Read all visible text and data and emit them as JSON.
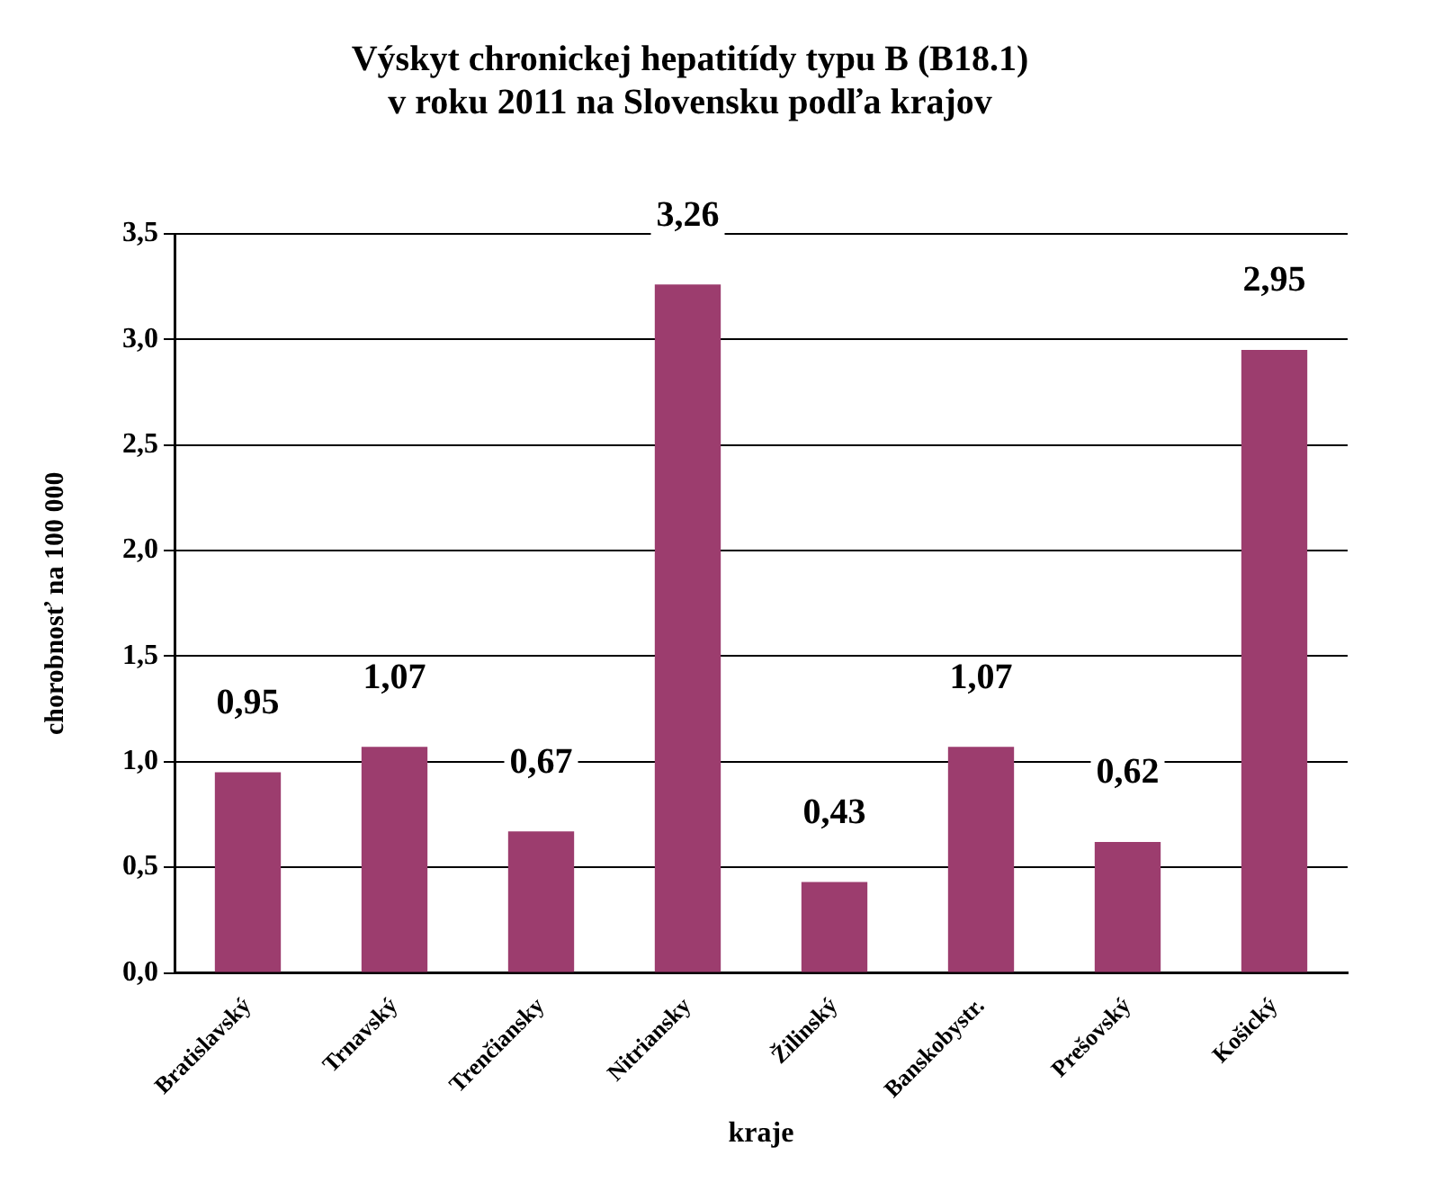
{
  "chart_data": {
    "type": "bar",
    "title": "Výskyt chronickej hepatitídy typu B (B18.1)",
    "subtitle": "v roku 2011 na Slovensku podľa krajov",
    "xlabel": "kraje",
    "ylabel": "chorobnosť na 100 000",
    "categories": [
      "Bratislavský",
      "Trnavský",
      "Trenčiansky",
      "Nitriansky",
      "Žilinský",
      "Banskobystr.",
      "Prešovský",
      "Košický"
    ],
    "values": [
      0.95,
      1.07,
      0.67,
      3.26,
      0.43,
      1.07,
      0.62,
      2.95
    ],
    "value_labels": [
      "0,95",
      "1,07",
      "0,67",
      "3,26",
      "0,43",
      "1,07",
      "0,62",
      "2,95"
    ],
    "color": "#9c3d6e",
    "ylim": [
      0,
      3.5
    ],
    "yticks": [
      {
        "value": 0,
        "label": "0,0"
      },
      {
        "value": 0.5,
        "label": "0,5"
      },
      {
        "value": 1,
        "label": "1,0"
      },
      {
        "value": 1.5,
        "label": "1,5"
      },
      {
        "value": 2,
        "label": "2,0"
      },
      {
        "value": 2.5,
        "label": "2,5"
      },
      {
        "value": 3,
        "label": "3,0"
      },
      {
        "value": 3.5,
        "label": "3,5"
      }
    ],
    "grid": "y",
    "legend": false
  }
}
